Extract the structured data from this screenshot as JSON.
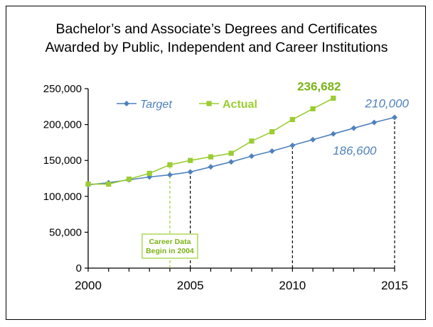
{
  "chart_data": {
    "type": "line",
    "title_lines": [
      "Bachelor’s and Associate’s Degrees and Certificates",
      "Awarded by Public, Independent and Career Institutions"
    ],
    "xlabel": "",
    "ylabel": "",
    "xlim": [
      2000,
      2015
    ],
    "ylim": [
      0,
      250000
    ],
    "y_ticks": [
      0,
      50000,
      100000,
      150000,
      200000,
      250000
    ],
    "y_tick_labels": [
      "0",
      "50,000",
      "100,000",
      "150,000",
      "200,000",
      "250,000"
    ],
    "x_ticks": [
      2000,
      2005,
      2010,
      2015
    ],
    "x_tick_labels": [
      "2000",
      "2005",
      "2010",
      "2015"
    ],
    "grid": false,
    "legend_position": "top-left",
    "series": [
      {
        "name": "Target",
        "color": "#4f81bd",
        "marker": "diamond",
        "x": [
          2000,
          2001,
          2002,
          2003,
          2004,
          2005,
          2006,
          2007,
          2008,
          2009,
          2010,
          2011,
          2012,
          2013,
          2014,
          2015
        ],
        "values": [
          116000,
          119000,
          123000,
          127000,
          130000,
          134000,
          141000,
          148000,
          156000,
          163000,
          171000,
          179000,
          187000,
          195000,
          203000,
          210000
        ]
      },
      {
        "name": "Actual",
        "color": "#9acd32",
        "marker": "square",
        "x": [
          2000,
          2001,
          2002,
          2003,
          2004,
          2005,
          2006,
          2007,
          2008,
          2009,
          2010,
          2011,
          2012
        ],
        "values": [
          117000,
          117000,
          124000,
          132000,
          144000,
          150000,
          155000,
          160000,
          177000,
          190000,
          207000,
          222000,
          236682
        ]
      }
    ],
    "annotations": [
      {
        "text": "236,682",
        "x": 2012,
        "y": 236682,
        "color": "#7ab317",
        "style": "bold"
      },
      {
        "text": "210,000",
        "x": 2015,
        "y": 210000,
        "color": "#4f81bd",
        "style": "italic"
      },
      {
        "text": "186,600",
        "x": 2012,
        "y": 186600,
        "color": "#4f81bd",
        "style": "italic"
      }
    ],
    "reference_lines": [
      {
        "x": 2004,
        "color": "#9acd32"
      },
      {
        "x": 2005,
        "color": "#000000"
      },
      {
        "x": 2010,
        "color": "#000000"
      },
      {
        "x": 2015,
        "color": "#000000"
      }
    ],
    "note": {
      "lines": [
        "Career Data",
        "Begin in 2004"
      ],
      "color": "#9acd32"
    }
  }
}
